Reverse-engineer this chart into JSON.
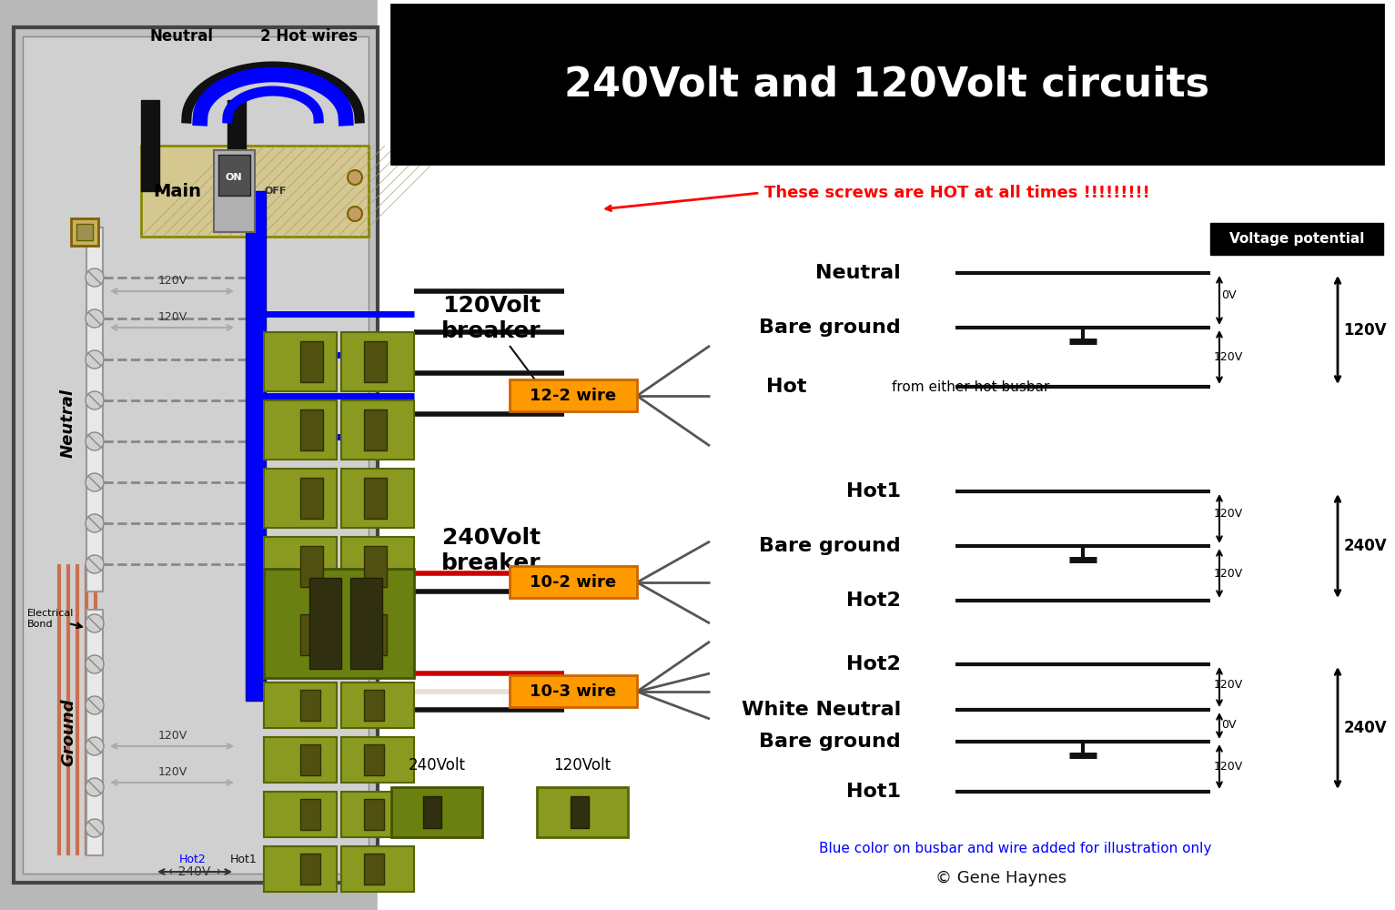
{
  "title": "240Volt and 120Volt circuits",
  "title_bg": "#000000",
  "title_fg": "#ffffff",
  "panel_bg": "#c8c8c8",
  "panel_border": "#555555",
  "warning_text": "These screws are HOT at all times !!!!!!!!!",
  "warning_color": "#ff0000",
  "wire_122_label": "12-2 wire",
  "wire_102_label": "10-2 wire",
  "wire_103_label": "10-3 wire",
  "wire_label_color": "#000000",
  "wire_label_bg": "#ff9900",
  "breaker_120_label": "120Volt\nbreaker",
  "breaker_240_label": "240Volt\nbreaker",
  "voltage_potential_label": "Voltage potential",
  "copyright": "© Gene Haynes",
  "blue_note": "Blue color on busbar and wire added for illustration only",
  "neutral_busbar_color": "#e0e0e0",
  "hot_busbar1_color": "#4a7a00",
  "hot_busbar2_color": "#6b8a00",
  "blue_busbar_color": "#0000ff",
  "black_wire_color": "#111111",
  "red_wire_color": "#cc0000",
  "bare_wire_color": "#c8a080",
  "white_wire_color": "#ffffff",
  "ground_wire_color": "#c87050"
}
